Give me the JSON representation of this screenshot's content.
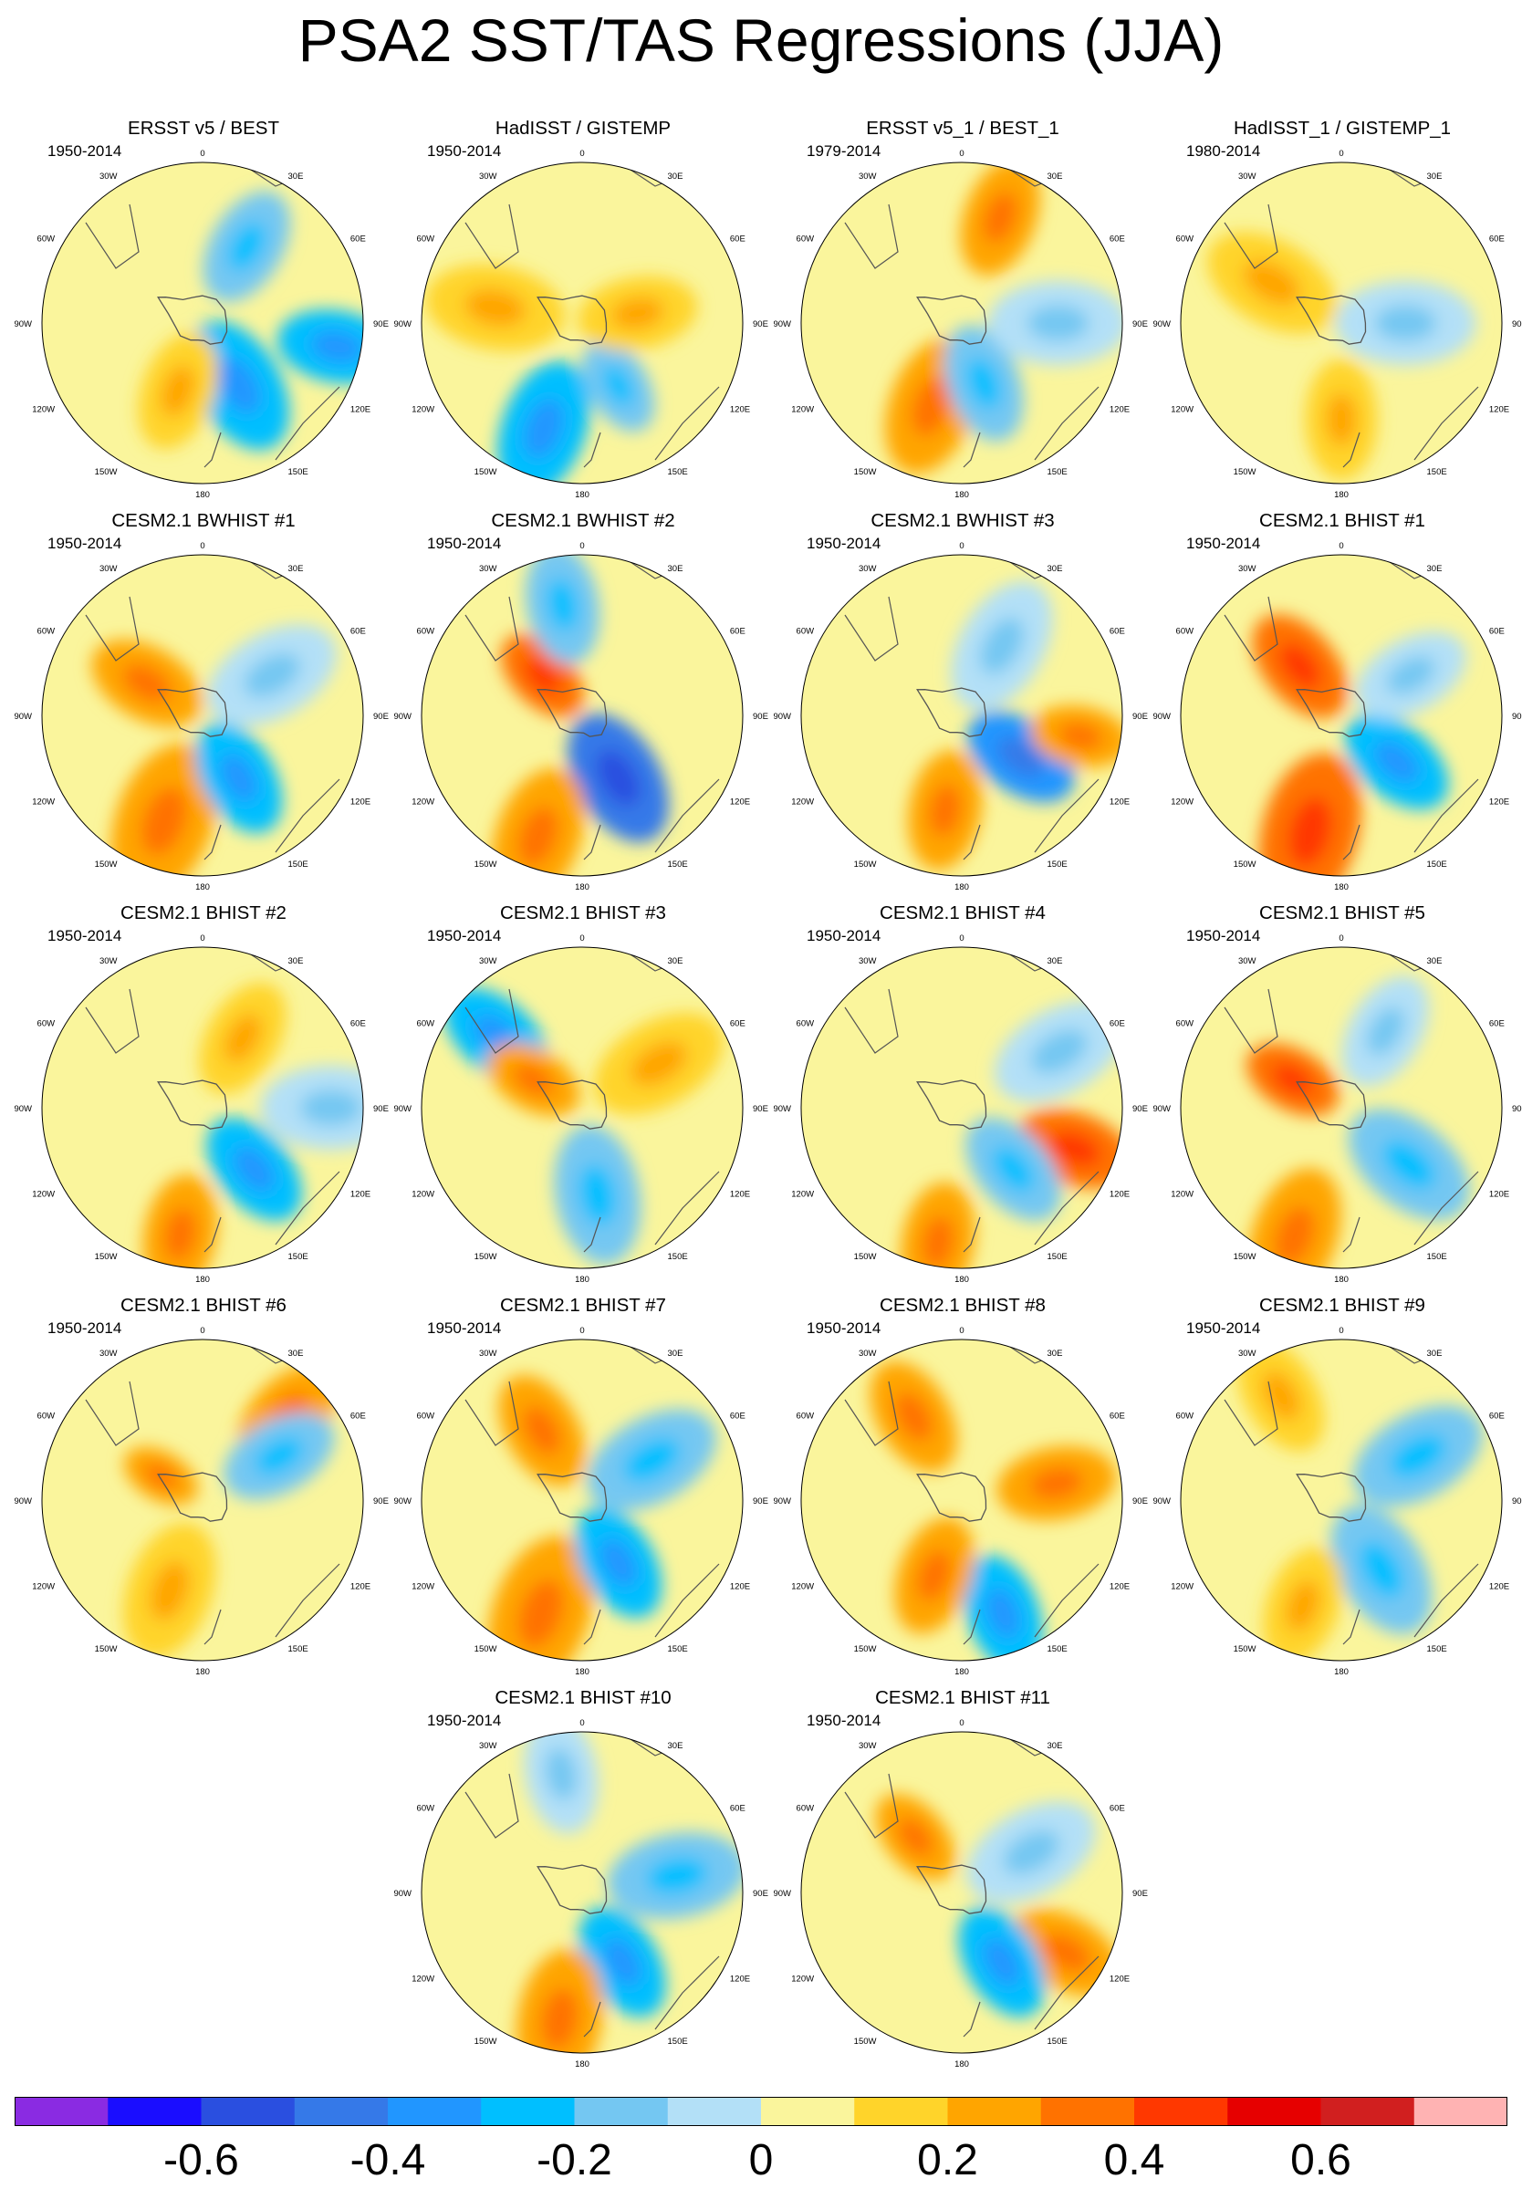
{
  "title": "PSA2 SST/TAS Regressions (JJA)",
  "lon_labels": [
    "0",
    "30E",
    "60E",
    "90E",
    "120E",
    "150E",
    "180",
    "150W",
    "120W",
    "90W",
    "60W",
    "30W"
  ],
  "colors": {
    "levels": [
      "#8a2be2",
      "#1a0dff",
      "#2a4fe0",
      "#3579e8",
      "#2196ff",
      "#00bfff",
      "#74c7f2",
      "#b3e0f7",
      "#faf59c",
      "#ffd42a",
      "#ffa500",
      "#ff7200",
      "#ff3800",
      "#e60000",
      "#d11f1f",
      "#ffb3b3"
    ],
    "land_outline": "#555555"
  },
  "colorbar": {
    "tick_labels": [
      "-0.6",
      "-0.4",
      "-0.2",
      "0",
      "0.2",
      "0.4",
      "0.6"
    ],
    "tick_values": [
      -0.6,
      -0.4,
      -0.2,
      0,
      0.2,
      0.4,
      0.6
    ]
  },
  "chart_data": {
    "type": "heatmap",
    "projection": "south-polar-stereographic",
    "variable": "SST/TAS regression on PSA2 index",
    "colorbar_range": [
      -0.8,
      0.8
    ],
    "panels": [
      {
        "title": "ERSST v5 / BEST",
        "period": "1950-2014",
        "features": [
          {
            "lon": 150,
            "r": 0.45,
            "size": 0.35,
            "value": -0.3
          },
          {
            "lon": 30,
            "r": 0.55,
            "size": 0.3,
            "value": -0.2
          },
          {
            "lon": 200,
            "r": 0.45,
            "size": 0.3,
            "value": 0.1
          },
          {
            "lon": 100,
            "r": 0.85,
            "size": 0.3,
            "value": -0.3
          }
        ]
      },
      {
        "title": "HadISST / GISTEMP",
        "period": "1950-2014",
        "features": [
          {
            "lon": 200,
            "r": 0.7,
            "size": 0.35,
            "value": -0.3
          },
          {
            "lon": 150,
            "r": 0.45,
            "size": 0.25,
            "value": -0.2
          },
          {
            "lon": 80,
            "r": 0.35,
            "size": 0.3,
            "value": 0.1
          },
          {
            "lon": 280,
            "r": 0.55,
            "size": 0.35,
            "value": 0.1
          }
        ]
      },
      {
        "title": "ERSST v5_1 / BEST_1",
        "period": "1979-2014",
        "features": [
          {
            "lon": 200,
            "r": 0.55,
            "size": 0.35,
            "value": 0.25
          },
          {
            "lon": 20,
            "r": 0.7,
            "size": 0.3,
            "value": 0.25
          },
          {
            "lon": 160,
            "r": 0.4,
            "size": 0.3,
            "value": -0.2
          },
          {
            "lon": 90,
            "r": 0.6,
            "size": 0.35,
            "value": -0.1
          }
        ]
      },
      {
        "title": "HadISST_1 / GISTEMP_1",
        "period": "1980-2014",
        "features": [
          {
            "lon": 180,
            "r": 0.6,
            "size": 0.3,
            "value": 0.1
          },
          {
            "lon": 300,
            "r": 0.5,
            "size": 0.35,
            "value": 0.1
          },
          {
            "lon": 90,
            "r": 0.4,
            "size": 0.35,
            "value": -0.1
          }
        ]
      },
      {
        "title": "CESM2.1 BWHIST #1",
        "period": "1950-2014",
        "features": [
          {
            "lon": 200,
            "r": 0.7,
            "size": 0.4,
            "value": 0.25
          },
          {
            "lon": 150,
            "r": 0.45,
            "size": 0.3,
            "value": -0.3
          },
          {
            "lon": 300,
            "r": 0.4,
            "size": 0.3,
            "value": 0.2
          },
          {
            "lon": 60,
            "r": 0.5,
            "size": 0.35,
            "value": -0.1
          }
        ]
      },
      {
        "title": "CESM2.1 BWHIST #2",
        "period": "1950-2014",
        "features": [
          {
            "lon": 150,
            "r": 0.45,
            "size": 0.35,
            "value": -0.45
          },
          {
            "lon": 200,
            "r": 0.8,
            "size": 0.35,
            "value": 0.25
          },
          {
            "lon": 315,
            "r": 0.35,
            "size": 0.25,
            "value": 0.3
          },
          {
            "lon": 350,
            "r": 0.7,
            "size": 0.3,
            "value": -0.2
          }
        ]
      },
      {
        "title": "CESM2.1 BWHIST #3",
        "period": "1950-2014",
        "features": [
          {
            "lon": 125,
            "r": 0.45,
            "size": 0.3,
            "value": -0.35
          },
          {
            "lon": 100,
            "r": 0.75,
            "size": 0.25,
            "value": 0.25
          },
          {
            "lon": 190,
            "r": 0.6,
            "size": 0.3,
            "value": 0.2
          },
          {
            "lon": 30,
            "r": 0.5,
            "size": 0.35,
            "value": -0.1
          }
        ]
      },
      {
        "title": "CESM2.1 BHIST #1",
        "period": "1950-2014",
        "features": [
          {
            "lon": 195,
            "r": 0.75,
            "size": 0.4,
            "value": 0.3
          },
          {
            "lon": 130,
            "r": 0.45,
            "size": 0.3,
            "value": -0.25
          },
          {
            "lon": 320,
            "r": 0.4,
            "size": 0.3,
            "value": 0.3
          },
          {
            "lon": 60,
            "r": 0.5,
            "size": 0.3,
            "value": -0.1
          }
        ]
      },
      {
        "title": "CESM2.1 BHIST #2",
        "period": "1950-2014",
        "features": [
          {
            "lon": 190,
            "r": 0.8,
            "size": 0.3,
            "value": 0.25
          },
          {
            "lon": 140,
            "r": 0.5,
            "size": 0.3,
            "value": -0.25
          },
          {
            "lon": 90,
            "r": 0.8,
            "size": 0.35,
            "value": -0.1
          },
          {
            "lon": 30,
            "r": 0.5,
            "size": 0.3,
            "value": 0.1
          }
        ]
      },
      {
        "title": "CESM2.1 BHIST #3",
        "period": "1950-2014",
        "features": [
          {
            "lon": 310,
            "r": 0.7,
            "size": 0.3,
            "value": -0.25
          },
          {
            "lon": 300,
            "r": 0.35,
            "size": 0.25,
            "value": 0.25
          },
          {
            "lon": 170,
            "r": 0.55,
            "size": 0.35,
            "value": -0.15
          },
          {
            "lon": 60,
            "r": 0.55,
            "size": 0.35,
            "value": 0.1
          }
        ]
      },
      {
        "title": "CESM2.1 BHIST #4",
        "period": "1950-2014",
        "features": [
          {
            "lon": 110,
            "r": 0.75,
            "size": 0.3,
            "value": 0.3
          },
          {
            "lon": 140,
            "r": 0.5,
            "size": 0.3,
            "value": -0.2
          },
          {
            "lon": 190,
            "r": 0.85,
            "size": 0.3,
            "value": 0.25
          },
          {
            "lon": 60,
            "r": 0.7,
            "size": 0.35,
            "value": -0.1
          }
        ]
      },
      {
        "title": "CESM2.1 BHIST #5",
        "period": "1950-2014",
        "features": [
          {
            "lon": 300,
            "r": 0.35,
            "size": 0.25,
            "value": 0.3
          },
          {
            "lon": 200,
            "r": 0.85,
            "size": 0.35,
            "value": 0.2
          },
          {
            "lon": 130,
            "r": 0.55,
            "size": 0.35,
            "value": -0.15
          },
          {
            "lon": 30,
            "r": 0.55,
            "size": 0.3,
            "value": -0.1
          }
        ]
      },
      {
        "title": "CESM2.1 BHIST #6",
        "period": "1950-2014",
        "features": [
          {
            "lon": 45,
            "r": 0.75,
            "size": 0.3,
            "value": 0.2
          },
          {
            "lon": 60,
            "r": 0.55,
            "size": 0.3,
            "value": -0.2
          },
          {
            "lon": 300,
            "r": 0.3,
            "size": 0.2,
            "value": 0.25
          },
          {
            "lon": 200,
            "r": 0.6,
            "size": 0.35,
            "value": 0.1
          }
        ]
      },
      {
        "title": "CESM2.1 BHIST #7",
        "period": "1950-2014",
        "features": [
          {
            "lon": 200,
            "r": 0.75,
            "size": 0.4,
            "value": 0.25
          },
          {
            "lon": 150,
            "r": 0.45,
            "size": 0.3,
            "value": -0.25
          },
          {
            "lon": 330,
            "r": 0.5,
            "size": 0.3,
            "value": 0.25
          },
          {
            "lon": 60,
            "r": 0.5,
            "size": 0.35,
            "value": -0.15
          }
        ]
      },
      {
        "title": "CESM2.1 BHIST #8",
        "period": "1950-2014",
        "features": [
          {
            "lon": 160,
            "r": 0.75,
            "size": 0.3,
            "value": -0.25
          },
          {
            "lon": 200,
            "r": 0.5,
            "size": 0.3,
            "value": 0.2
          },
          {
            "lon": 80,
            "r": 0.6,
            "size": 0.3,
            "value": 0.2
          },
          {
            "lon": 330,
            "r": 0.6,
            "size": 0.3,
            "value": 0.2
          }
        ]
      },
      {
        "title": "CESM2.1 BHIST #9",
        "period": "1950-2014",
        "features": [
          {
            "lon": 150,
            "r": 0.5,
            "size": 0.35,
            "value": -0.2
          },
          {
            "lon": 60,
            "r": 0.55,
            "size": 0.35,
            "value": -0.15
          },
          {
            "lon": 200,
            "r": 0.7,
            "size": 0.3,
            "value": 0.1
          },
          {
            "lon": 330,
            "r": 0.75,
            "size": 0.3,
            "value": 0.1
          }
        ]
      },
      {
        "title": "CESM2.1 BHIST #10",
        "period": "1950-2014",
        "features": [
          {
            "lon": 150,
            "r": 0.5,
            "size": 0.3,
            "value": -0.3
          },
          {
            "lon": 190,
            "r": 0.8,
            "size": 0.35,
            "value": 0.25
          },
          {
            "lon": 80,
            "r": 0.6,
            "size": 0.35,
            "value": -0.15
          },
          {
            "lon": 350,
            "r": 0.75,
            "size": 0.3,
            "value": -0.1
          }
        ]
      },
      {
        "title": "CESM2.1 BHIST #11",
        "period": "1950-2014",
        "features": [
          {
            "lon": 120,
            "r": 0.75,
            "size": 0.3,
            "value": 0.25
          },
          {
            "lon": 150,
            "r": 0.5,
            "size": 0.3,
            "value": -0.25
          },
          {
            "lon": 320,
            "r": 0.45,
            "size": 0.25,
            "value": 0.25
          },
          {
            "lon": 60,
            "r": 0.5,
            "size": 0.35,
            "value": -0.1
          }
        ]
      }
    ]
  }
}
